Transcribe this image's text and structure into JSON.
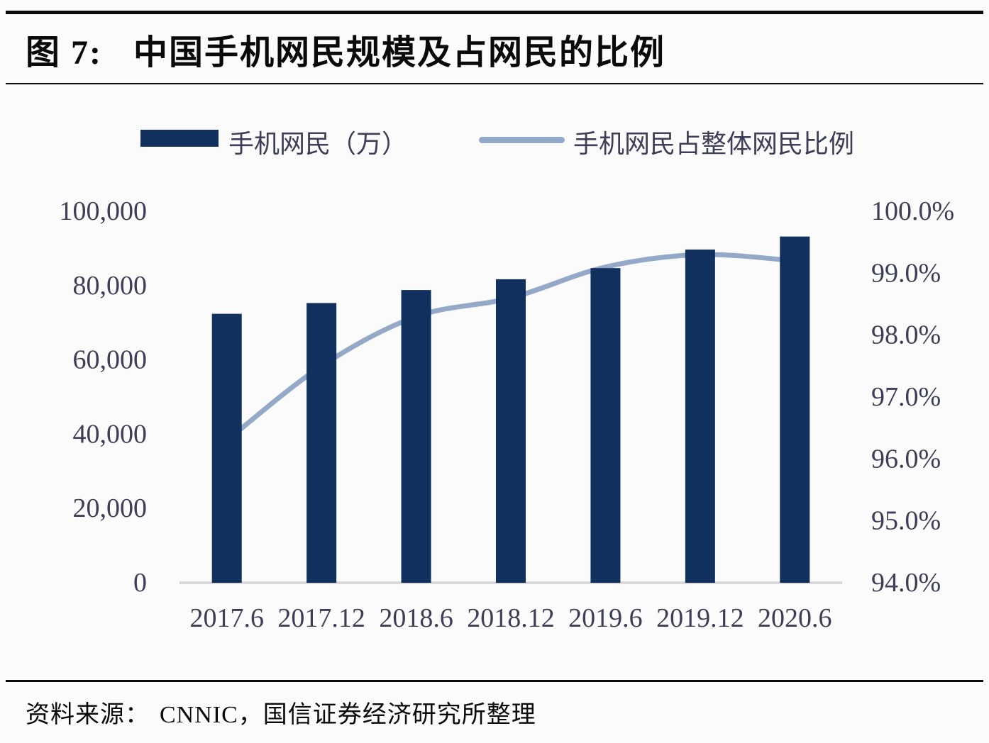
{
  "page": {
    "title_label": "图 7:",
    "title": "中国手机网民规模及占网民的比例",
    "source_label": "资料来源：",
    "source_text": "CNNIC，国信证券经济研究所整理"
  },
  "legend": {
    "bar_label": "手机网民（万）",
    "line_label": "手机网民占整体网民比例"
  },
  "colors": {
    "bar": "#12305e",
    "line": "#94a9c8",
    "axis_text": "#3d3e57",
    "baseline": "#d9d9d9",
    "rule": "#0b0b0b",
    "title_text": "#0a0a0a"
  },
  "chart_data": {
    "type": "combo",
    "categories": [
      "2017.6",
      "2017.12",
      "2018.6",
      "2018.12",
      "2019.6",
      "2019.12",
      "2020.6"
    ],
    "series": [
      {
        "name": "手机网民（万）",
        "type": "bar",
        "axis": "left",
        "values": [
          72400,
          75300,
          78800,
          81700,
          84700,
          89700,
          93200
        ]
      },
      {
        "name": "手机网民占整体网民比例",
        "type": "line",
        "axis": "right",
        "values": [
          96.3,
          97.5,
          98.3,
          98.6,
          99.1,
          99.3,
          99.2
        ]
      }
    ],
    "left_axis": {
      "min": 0,
      "max": 100000,
      "tick_step": 20000,
      "tick_labels": [
        "0",
        "20,000",
        "40,000",
        "60,000",
        "80,000",
        "100,000"
      ]
    },
    "right_axis": {
      "min": 94.0,
      "max": 100.0,
      "tick_step": 1.0,
      "tick_labels": [
        "94.0%",
        "95.0%",
        "96.0%",
        "97.0%",
        "98.0%",
        "99.0%",
        "100.0%"
      ]
    },
    "grid": false,
    "legend_position": "top"
  }
}
